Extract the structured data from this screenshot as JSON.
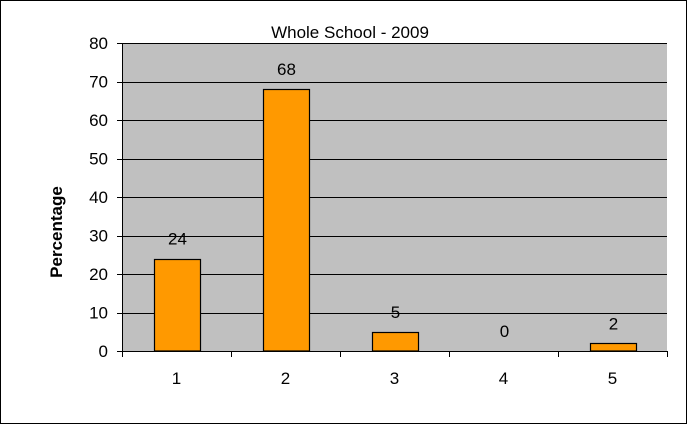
{
  "chart_data": {
    "type": "bar",
    "title": "Whole School - 2009",
    "xlabel": "",
    "ylabel": "Percentage",
    "categories": [
      "1",
      "2",
      "3",
      "4",
      "5"
    ],
    "values": [
      24,
      68,
      5,
      0,
      2
    ],
    "data_labels": [
      "24",
      "68",
      "5",
      "0",
      "2"
    ],
    "ylim": [
      0,
      80
    ],
    "yticks": [
      0,
      10,
      20,
      30,
      40,
      50,
      60,
      70,
      80
    ],
    "ytick_labels": [
      "0",
      "10",
      "20",
      "30",
      "40",
      "50",
      "60",
      "70",
      "80"
    ],
    "grid": true,
    "legend": false,
    "colors": {
      "bar_fill": "#FF9900",
      "bar_stroke": "#000000",
      "plot_background": "#C0C0C0",
      "gridline": "#000000"
    }
  }
}
